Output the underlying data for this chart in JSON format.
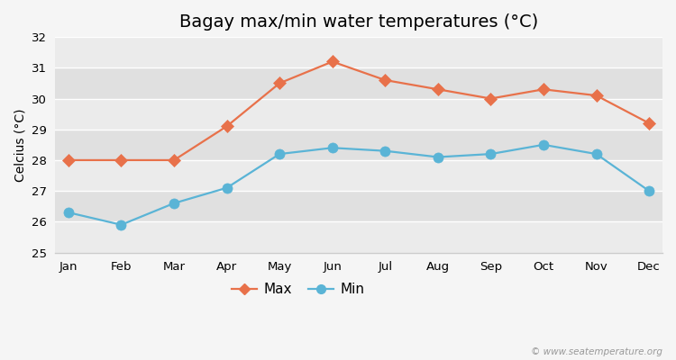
{
  "title": "Bagay max/min water temperatures (°C)",
  "ylabel": "Celcius (°C)",
  "months": [
    "Jan",
    "Feb",
    "Mar",
    "Apr",
    "May",
    "Jun",
    "Jul",
    "Aug",
    "Sep",
    "Oct",
    "Nov",
    "Dec"
  ],
  "max_values": [
    28.0,
    28.0,
    28.0,
    29.1,
    30.5,
    31.2,
    30.6,
    30.3,
    30.0,
    30.3,
    30.1,
    29.2
  ],
  "min_values": [
    26.3,
    25.9,
    26.6,
    27.1,
    28.2,
    28.4,
    28.3,
    28.1,
    28.2,
    28.5,
    28.2,
    27.0
  ],
  "max_color": "#e8714a",
  "min_color": "#5ab4d6",
  "ylim": [
    25,
    32
  ],
  "yticks": [
    25,
    26,
    27,
    28,
    29,
    30,
    31,
    32
  ],
  "bg_color": "#f5f5f5",
  "band_colors": [
    "#ebebeb",
    "#e0e0e0"
  ],
  "grid_color": "#ffffff",
  "watermark": "© www.seatemperature.org",
  "legend_labels": [
    "Max",
    "Min"
  ],
  "title_fontsize": 14,
  "label_fontsize": 10,
  "tick_fontsize": 9.5,
  "marker_size_max": 7,
  "marker_size_min": 8,
  "line_width": 1.6
}
